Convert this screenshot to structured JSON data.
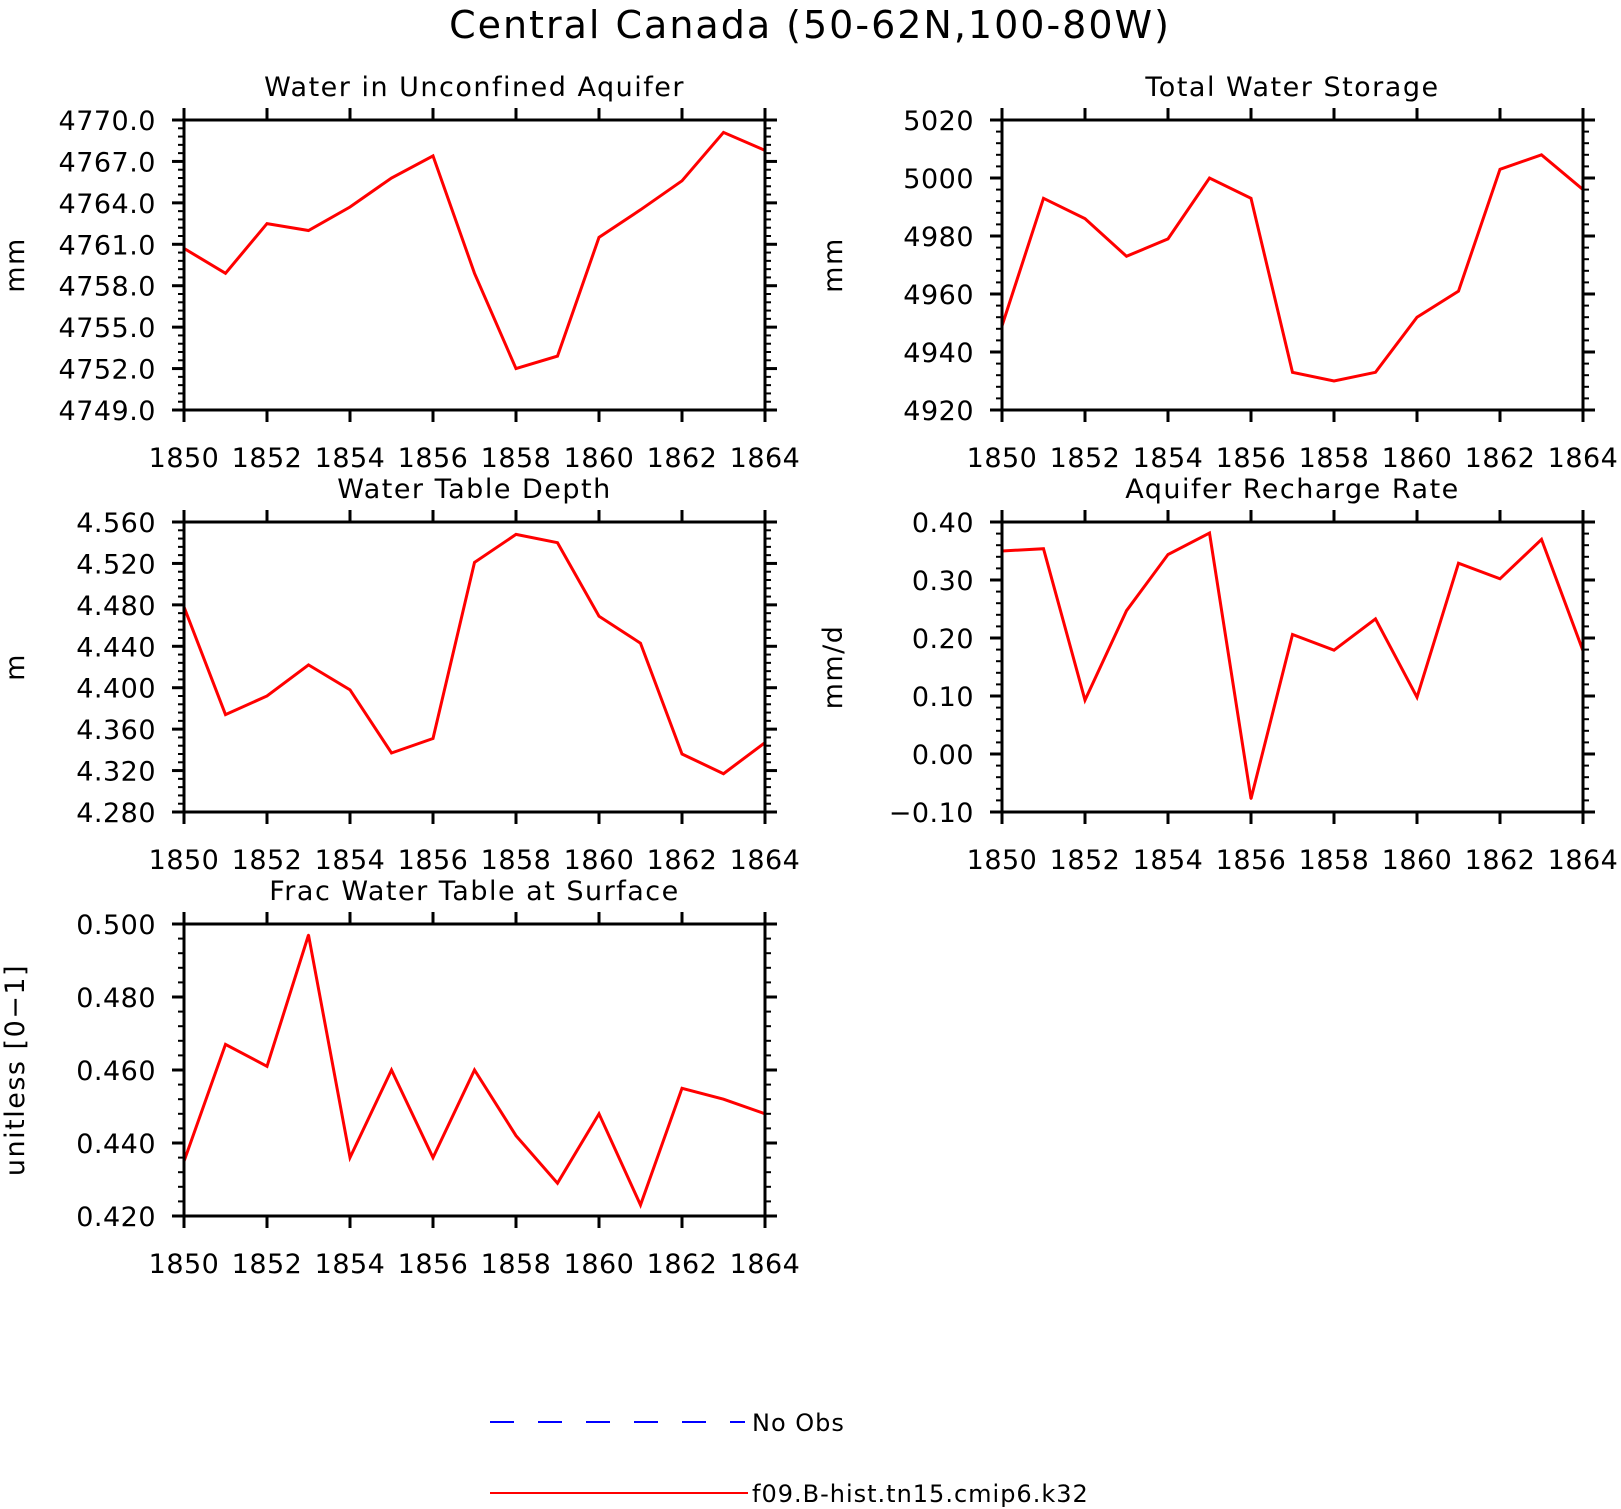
{
  "title": "Central Canada (50-62N,100-80W)",
  "colors": {
    "model": "#ff0000",
    "obs": "#0000ff",
    "axis": "#000000"
  },
  "legend": [
    {
      "label": "No Obs",
      "color": "#0000ff",
      "style": "dashed"
    },
    {
      "label": "f09.B-hist.tn15.cmip6.k32",
      "color": "#ff0000",
      "style": "solid"
    }
  ],
  "chart_data": [
    {
      "type": "line",
      "title": "Water in Unconfined Aquifer",
      "ylabel": "mm",
      "xlim": [
        1850,
        1864
      ],
      "ylim": [
        4749.0,
        4770.0
      ],
      "xticks": [
        "1850",
        "1852",
        "1854",
        "1856",
        "1858",
        "1860",
        "1862",
        "1864"
      ],
      "yticks": [
        "4749.0",
        "4752.0",
        "4755.0",
        "4758.0",
        "4761.0",
        "4764.0",
        "4767.0",
        "4770.0"
      ],
      "x": [
        1850,
        1851,
        1852,
        1853,
        1854,
        1855,
        1856,
        1857,
        1858,
        1859,
        1860,
        1861,
        1862,
        1863,
        1864
      ],
      "series": [
        {
          "name": "f09.B-hist.tn15.cmip6.k32",
          "values": [
            4760.7,
            4758.9,
            4762.5,
            4762.0,
            4763.7,
            4765.8,
            4767.4,
            4758.9,
            4752.0,
            4752.9,
            4761.5,
            4763.5,
            4765.6,
            4769.1,
            4767.8
          ]
        }
      ]
    },
    {
      "type": "line",
      "title": "Total Water Storage",
      "ylabel": "mm",
      "xlim": [
        1850,
        1864
      ],
      "ylim": [
        4920,
        5020
      ],
      "xticks": [
        "1850",
        "1852",
        "1854",
        "1856",
        "1858",
        "1860",
        "1862",
        "1864"
      ],
      "yticks": [
        "4920",
        "4940",
        "4960",
        "4980",
        "5000",
        "5020"
      ],
      "x": [
        1850,
        1851,
        1852,
        1853,
        1854,
        1855,
        1856,
        1857,
        1858,
        1859,
        1860,
        1861,
        1862,
        1863,
        1864
      ],
      "series": [
        {
          "name": "f09.B-hist.tn15.cmip6.k32",
          "values": [
            4949,
            4993,
            4986,
            4973,
            4979,
            5000,
            4993,
            4933,
            4930,
            4933,
            4952,
            4961,
            5003,
            5008,
            4996
          ]
        }
      ]
    },
    {
      "type": "line",
      "title": "Water Table Depth",
      "ylabel": "m",
      "xlim": [
        1850,
        1864
      ],
      "ylim": [
        4.28,
        4.56
      ],
      "xticks": [
        "1850",
        "1852",
        "1854",
        "1856",
        "1858",
        "1860",
        "1862",
        "1864"
      ],
      "yticks": [
        "4.280",
        "4.320",
        "4.360",
        "4.400",
        "4.440",
        "4.480",
        "4.520",
        "4.560"
      ],
      "x": [
        1850,
        1851,
        1852,
        1853,
        1854,
        1855,
        1856,
        1857,
        1858,
        1859,
        1860,
        1861,
        1862,
        1863,
        1864
      ],
      "series": [
        {
          "name": "f09.B-hist.tn15.cmip6.k32",
          "values": [
            4.478,
            4.374,
            4.392,
            4.422,
            4.398,
            4.337,
            4.351,
            4.521,
            4.548,
            4.54,
            4.469,
            4.443,
            4.336,
            4.317,
            4.347
          ]
        }
      ]
    },
    {
      "type": "line",
      "title": "Aquifer Recharge Rate",
      "ylabel": "mm/d",
      "xlim": [
        1850,
        1864
      ],
      "ylim": [
        -0.1,
        0.4
      ],
      "xticks": [
        "1850",
        "1852",
        "1854",
        "1856",
        "1858",
        "1860",
        "1862",
        "1864"
      ],
      "yticks": [
        "−0.10",
        "0.00",
        "0.10",
        "0.20",
        "0.30",
        "0.40"
      ],
      "x": [
        1850,
        1851,
        1852,
        1853,
        1854,
        1855,
        1856,
        1857,
        1858,
        1859,
        1860,
        1861,
        1862,
        1863,
        1864
      ],
      "series": [
        {
          "name": "f09.B-hist.tn15.cmip6.k32",
          "values": [
            0.35,
            0.354,
            0.093,
            0.247,
            0.344,
            0.381,
            -0.077,
            0.206,
            0.179,
            0.233,
            0.098,
            0.329,
            0.302,
            0.37,
            0.178
          ]
        }
      ]
    },
    {
      "type": "line",
      "title": "Frac Water Table at Surface",
      "ylabel": "unitless [0−1]",
      "xlim": [
        1850,
        1864
      ],
      "ylim": [
        0.42,
        0.5
      ],
      "xticks": [
        "1850",
        "1852",
        "1854",
        "1856",
        "1858",
        "1860",
        "1862",
        "1864"
      ],
      "yticks": [
        "0.420",
        "0.440",
        "0.460",
        "0.480",
        "0.500"
      ],
      "x": [
        1850,
        1851,
        1852,
        1853,
        1854,
        1855,
        1856,
        1857,
        1858,
        1859,
        1860,
        1861,
        1862,
        1863,
        1864
      ],
      "series": [
        {
          "name": "f09.B-hist.tn15.cmip6.k32",
          "values": [
            0.435,
            0.467,
            0.461,
            0.497,
            0.436,
            0.46,
            0.436,
            0.46,
            0.442,
            0.429,
            0.448,
            0.423,
            0.455,
            0.452,
            0.448
          ]
        }
      ]
    }
  ]
}
